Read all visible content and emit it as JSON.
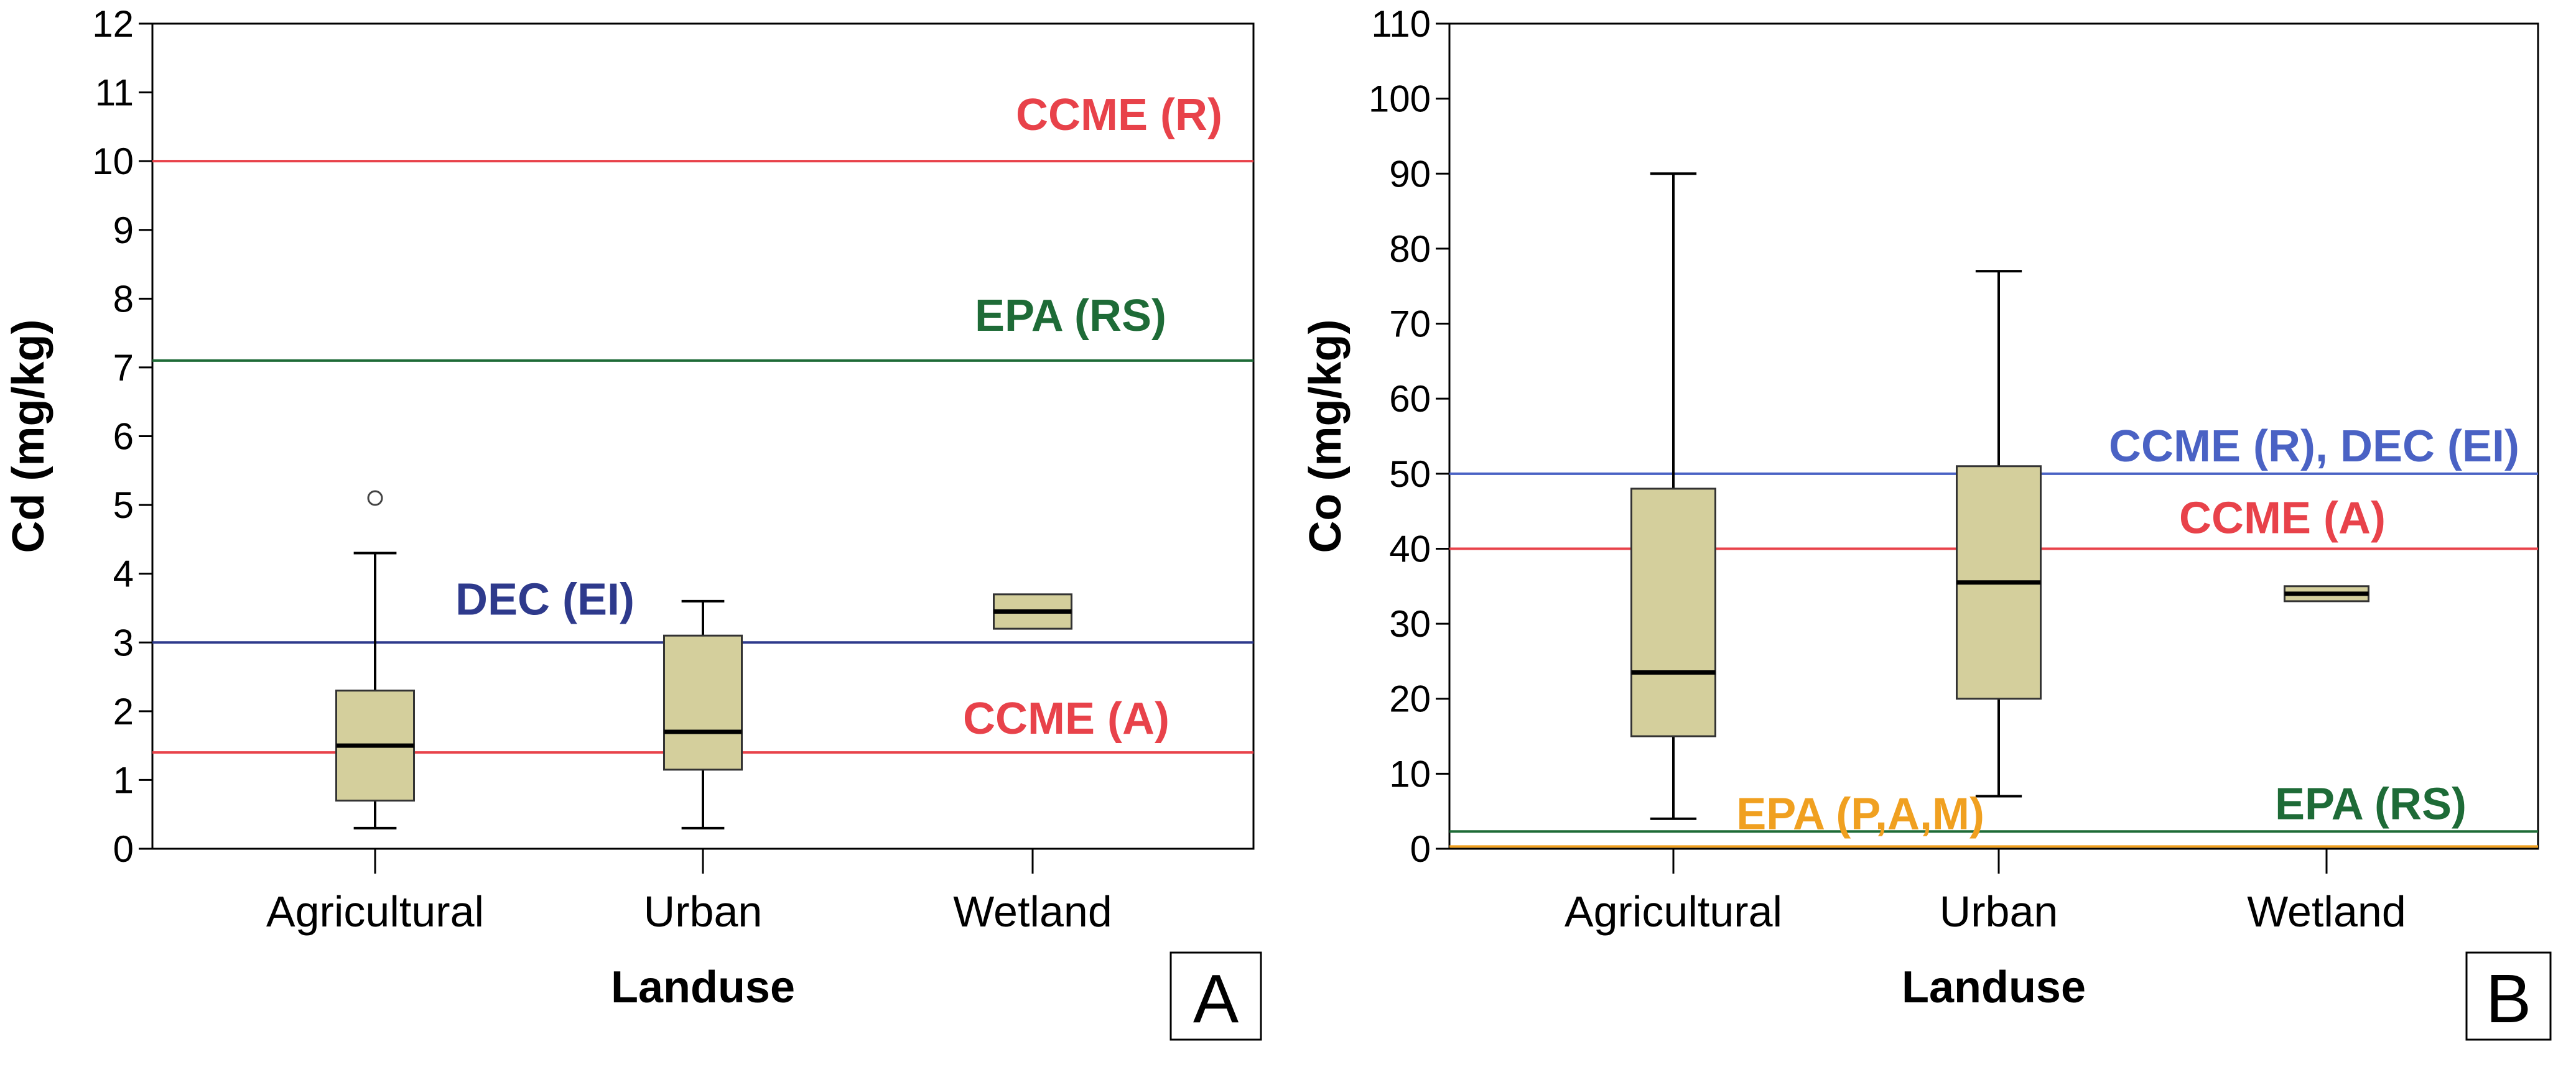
{
  "figure": {
    "panels": [
      "A",
      "B"
    ]
  },
  "chart_data": [
    {
      "type": "box",
      "panel_label": "A",
      "title": "",
      "xlabel": "Landuse",
      "ylabel": "Cd (mg/kg)",
      "ylim": [
        0,
        12
      ],
      "yticks": [
        "0",
        "1",
        "2",
        "3",
        "4",
        "5",
        "6",
        "7",
        "8",
        "9",
        "10",
        "11",
        "12"
      ],
      "categories": [
        "Agricultural",
        "Urban",
        "Wetland"
      ],
      "boxes": [
        {
          "category": "Agricultural",
          "min": 0.3,
          "q1": 0.7,
          "median": 1.5,
          "q3": 2.3,
          "max": 4.3,
          "outliers": [
            5.1
          ]
        },
        {
          "category": "Urban",
          "min": 0.3,
          "q1": 1.15,
          "median": 1.7,
          "q3": 3.1,
          "max": 3.6,
          "outliers": []
        },
        {
          "category": "Wetland",
          "min": 3.2,
          "q1": 3.2,
          "median": 3.45,
          "q3": 3.7,
          "max": 3.7,
          "outliers": []
        }
      ],
      "reference_lines": [
        {
          "label": "CCME (R)",
          "value": 10,
          "color": "#e8424a"
        },
        {
          "label": "EPA (RS)",
          "value": 7.1,
          "color": "#1e6b37"
        },
        {
          "label": "DEC (EI)",
          "value": 3.0,
          "color": "#2e3a8c"
        },
        {
          "label": "CCME (A)",
          "value": 1.4,
          "color": "#e8424a"
        }
      ],
      "box_fill": "#d4cf9c",
      "grid": false
    },
    {
      "type": "box",
      "panel_label": "B",
      "title": "",
      "xlabel": "Landuse",
      "ylabel": "Co (mg/kg)",
      "ylim": [
        0,
        110
      ],
      "yticks": [
        "0",
        "10",
        "20",
        "30",
        "40",
        "50",
        "60",
        "70",
        "80",
        "90",
        "100",
        "110"
      ],
      "categories": [
        "Agricultural",
        "Urban",
        "Wetland"
      ],
      "boxes": [
        {
          "category": "Agricultural",
          "min": 4,
          "q1": 15,
          "median": 23.5,
          "q3": 48,
          "max": 90,
          "outliers": []
        },
        {
          "category": "Urban",
          "min": 7,
          "q1": 20,
          "median": 35.5,
          "q3": 51,
          "max": 77,
          "outliers": []
        },
        {
          "category": "Wetland",
          "min": 33,
          "q1": 33,
          "median": 34,
          "q3": 35,
          "max": 35,
          "outliers": []
        }
      ],
      "reference_lines": [
        {
          "label": "CCME (R), DEC (EI)",
          "value": 50,
          "color": "#4a62c4"
        },
        {
          "label": "CCME (A)",
          "value": 40,
          "color": "#e8424a"
        },
        {
          "label": "EPA (RS)",
          "value": 2.3,
          "color": "#1e6b37"
        },
        {
          "label": "EPA (P,A,M)",
          "value": 0.3,
          "color": "#f0a020"
        }
      ],
      "box_fill": "#d4cf9c",
      "grid": false
    }
  ]
}
